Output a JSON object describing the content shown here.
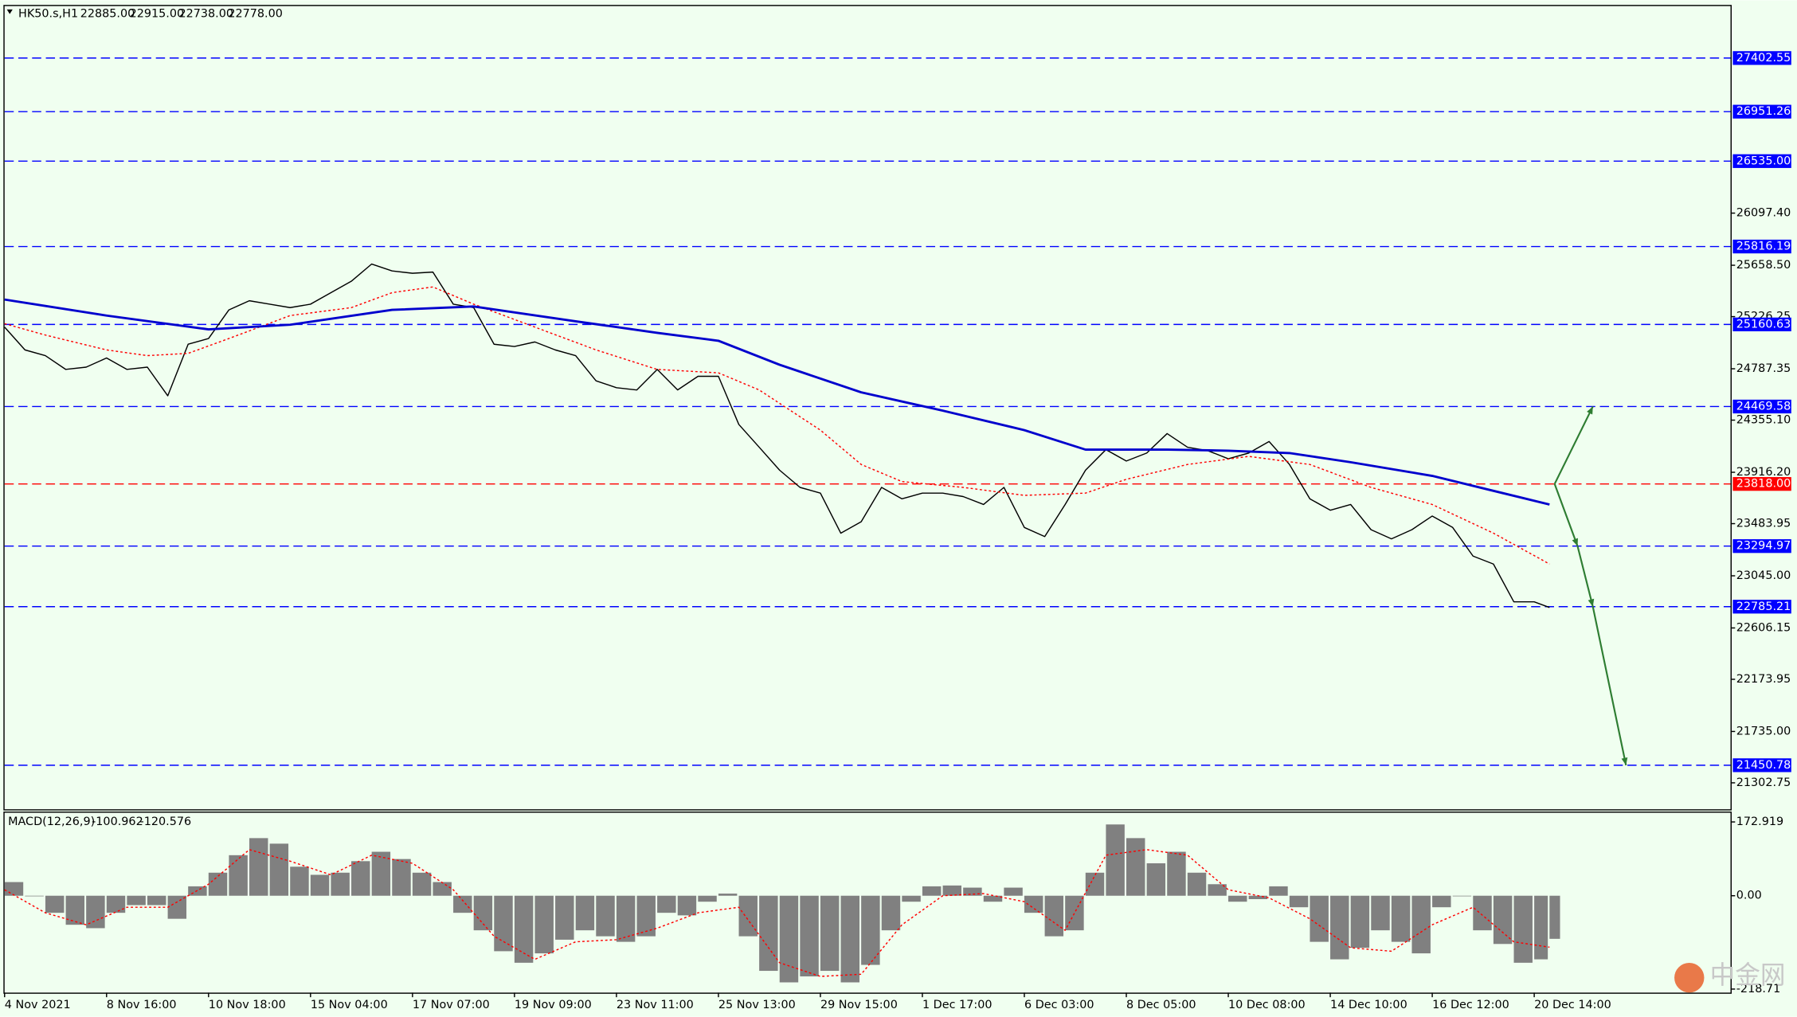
{
  "chart_data": [
    {
      "type": "line",
      "symbol": "HK50.s,H1",
      "ohlc": [
        {
          "value": 22885,
          "label": "22885.00"
        },
        {
          "value": 22915,
          "label": "22915.00"
        },
        {
          "value": 22738,
          "label": "22738.00"
        },
        {
          "value": 22778,
          "label": "22778.00"
        }
      ],
      "watermark": "中金网",
      "xlim": [
        0,
        677
      ],
      "ylim": [
        21080,
        27840
      ],
      "xticks": [
        {
          "value": 0,
          "label": "4 Nov 2021"
        },
        {
          "value": 40,
          "label": "8 Nov 16:00"
        },
        {
          "value": 80,
          "label": "10 Nov 18:00"
        },
        {
          "value": 120,
          "label": "15 Nov 04:00"
        },
        {
          "value": 160,
          "label": "17 Nov 07:00"
        },
        {
          "value": 200,
          "label": "19 Nov 09:00"
        },
        {
          "value": 240,
          "label": "23 Nov 11:00"
        },
        {
          "value": 280,
          "label": "25 Nov 13:00"
        },
        {
          "value": 320,
          "label": "29 Nov 15:00"
        },
        {
          "value": 360,
          "label": "1 Dec 17:00"
        },
        {
          "value": 400,
          "label": "6 Dec 03:00"
        },
        {
          "value": 440,
          "label": "8 Dec 05:00"
        },
        {
          "value": 480,
          "label": "10 Dec 08:00"
        },
        {
          "value": 520,
          "label": "14 Dec 10:00"
        },
        {
          "value": 560,
          "label": "16 Dec 12:00"
        },
        {
          "value": 600,
          "label": "20 Dec 14:00"
        }
      ],
      "yticks": [
        {
          "value": 26097.4,
          "label": "26097.40"
        },
        {
          "value": 25658.5,
          "label": "25658.50"
        },
        25226.25,
        24787.35,
        {
          "value": 24355.1,
          "label": "24355.10"
        },
        {
          "value": 23916.2,
          "label": "23916.20"
        },
        23483.95,
        {
          "value": 23045,
          "label": "23045.00"
        },
        22606.15,
        22173.95,
        {
          "value": 21735,
          "label": "21735.00"
        },
        21302.75
      ],
      "levels": [
        {
          "value": 27402.55,
          "color": "#0000ff"
        },
        {
          "value": 26951.26,
          "color": "#0000ff"
        },
        {
          "value": 26535,
          "label": "26535.00",
          "color": "#0000ff"
        },
        {
          "value": 25816.19,
          "color": "#0000ff"
        },
        {
          "value": 25160.63,
          "color": "#0000ff"
        },
        {
          "value": 24469.58,
          "color": "#0000ff"
        },
        {
          "value": 23818,
          "label": "23818.00",
          "color": "#ff0000"
        },
        {
          "value": 23294.97,
          "color": "#0000ff"
        },
        {
          "value": 22785.21,
          "color": "#0000ff"
        },
        {
          "value": 21450.78,
          "color": "#0000ff"
        }
      ],
      "arrow_color": "#2e7d32",
      "series": [
        {
          "color": "#000000",
          "width": 1,
          "dash": false,
          "x": [
            0,
            8,
            16,
            24,
            32,
            40,
            48,
            56,
            64,
            72,
            80,
            88,
            96,
            104,
            112,
            120,
            128,
            136,
            144,
            152,
            160,
            168,
            176,
            184,
            192,
            200,
            208,
            216,
            224,
            232,
            240,
            248,
            256,
            264,
            272,
            280,
            288,
            296,
            304,
            312,
            320,
            328,
            336,
            344,
            352,
            360,
            368,
            376,
            384,
            392,
            400,
            408,
            416,
            424,
            432,
            440,
            448,
            456,
            464,
            472,
            480,
            488,
            496,
            504,
            512,
            520,
            528,
            536,
            544,
            552,
            560,
            568,
            576,
            584,
            592,
            600,
            606
          ],
          "values": [
            25138,
            24946,
            24898,
            24782,
            24801,
            24878,
            24782,
            24801,
            24560,
            24994,
            25042,
            25283,
            25360,
            25331,
            25302,
            25331,
            25428,
            25524,
            25669,
            25611,
            25591,
            25601,
            25331,
            25302,
            24994,
            24975,
            25013,
            24946,
            24898,
            24686,
            24628,
            24609,
            24782,
            24609,
            24724,
            24724,
            24319,
            24127,
            23934,
            23789,
            23741,
            23404,
            23500,
            23789,
            23693,
            23741,
            23741,
            23712,
            23645,
            23789,
            23452,
            23375,
            23645,
            23934,
            24107,
            24011,
            24078,
            24242,
            24127,
            24098,
            24030,
            24078,
            24175,
            23982,
            23693,
            23597,
            23645,
            23433,
            23356,
            23433,
            23548,
            23452,
            23211,
            23144,
            22826,
            22826,
            22778
          ]
        },
        {
          "color": "#ff0000",
          "width": 1,
          "dash": true,
          "x": [
            0,
            16,
            40,
            56,
            72,
            88,
            112,
            136,
            152,
            168,
            184,
            208,
            232,
            256,
            280,
            296,
            320,
            336,
            352,
            376,
            400,
            424,
            440,
            464,
            488,
            512,
            536,
            560,
            584,
            606
          ],
          "values": [
            25167,
            25071,
            24946,
            24898,
            24917,
            25042,
            25235,
            25302,
            25428,
            25476,
            25331,
            25138,
            24946,
            24782,
            24753,
            24609,
            24271,
            23982,
            23838,
            23789,
            23722,
            23741,
            23857,
            23982,
            24050,
            23982,
            23789,
            23645,
            23404,
            23144
          ]
        },
        {
          "color": "#0000cd",
          "width": 2,
          "dash": false,
          "x": [
            0,
            40,
            80,
            112,
            152,
            184,
            224,
            256,
            280,
            304,
            336,
            368,
            400,
            424,
            456,
            480,
            504,
            528,
            560,
            584,
            606
          ],
          "values": [
            25370,
            25235,
            25119,
            25158,
            25283,
            25312,
            25187,
            25090,
            25023,
            24821,
            24589,
            24435,
            24271,
            24107,
            24107,
            24098,
            24078,
            24001,
            23886,
            23760,
            23645
          ]
        }
      ]
    },
    {
      "type": "bar",
      "title": "MACD(12,26,9)",
      "macd_value": -100.962,
      "signal_value": -120.576,
      "ylim": [
        -227,
        194.5
      ],
      "yticks": [
        172.919,
        {
          "value": 0,
          "label": "0.00"
        },
        -218.71
      ],
      "series": [
        {
          "color": "#808080",
          "x": [
            0,
            8,
            16,
            24,
            32,
            40,
            48,
            56,
            64,
            72,
            80,
            88,
            96,
            104,
            112,
            120,
            128,
            136,
            144,
            152,
            160,
            168,
            176,
            184,
            192,
            200,
            208,
            216,
            224,
            232,
            240,
            248,
            256,
            264,
            272,
            280,
            288,
            296,
            304,
            312,
            320,
            328,
            336,
            344,
            352,
            360,
            368,
            376,
            384,
            392,
            400,
            408,
            416,
            424,
            432,
            440,
            448,
            456,
            464,
            472,
            480,
            488,
            496,
            504,
            512,
            520,
            528,
            536,
            544,
            552,
            560,
            568,
            576,
            584,
            592,
            600,
            606
          ],
          "values": [
            32,
            0,
            -40,
            -68,
            -76,
            -40,
            -22,
            -22,
            -54,
            22,
            54,
            95,
            135,
            122,
            68,
            49,
            54,
            81,
            103,
            86,
            54,
            32,
            -40,
            -81,
            -130,
            -157,
            -135,
            -103,
            -81,
            -95,
            -108,
            -95,
            -40,
            -46,
            -14,
            5,
            -95,
            -176,
            -203,
            -189,
            -176,
            -203,
            -162,
            -81,
            -14,
            22,
            24,
            19,
            -14,
            19,
            -40,
            -95,
            -81,
            54,
            167,
            135,
            76,
            103,
            54,
            27,
            -14,
            -8,
            22,
            -27,
            -108,
            -149,
            -122,
            -81,
            -108,
            -135,
            -27,
            0,
            -81,
            -113,
            -157,
            -149,
            -100.962
          ]
        },
        {
          "type": "line",
          "color": "#ff0000",
          "dash": true,
          "x": [
            0,
            16,
            32,
            48,
            64,
            80,
            96,
            112,
            128,
            144,
            160,
            176,
            192,
            208,
            224,
            240,
            256,
            272,
            288,
            304,
            320,
            336,
            352,
            368,
            384,
            400,
            416,
            432,
            448,
            464,
            480,
            496,
            512,
            528,
            544,
            560,
            576,
            592,
            606
          ],
          "values": [
            14,
            -40,
            -68,
            -27,
            -27,
            27,
            108,
            81,
            49,
            95,
            76,
            14,
            -95,
            -149,
            -108,
            -103,
            -76,
            -40,
            -27,
            -157,
            -189,
            -184,
            -68,
            0,
            5,
            -14,
            -81,
            95,
            108,
            95,
            14,
            -5,
            -54,
            -122,
            -130,
            -68,
            -27,
            -108,
            -120.576
          ]
        }
      ]
    }
  ]
}
